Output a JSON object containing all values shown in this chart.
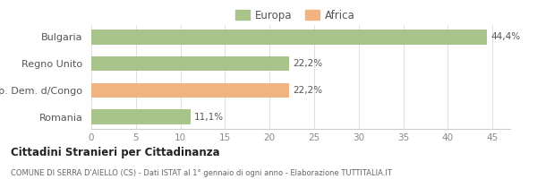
{
  "categories": [
    "Romania",
    "Rep. Dem. d/Congo",
    "Regno Unito",
    "Bulgaria"
  ],
  "values": [
    11.1,
    22.2,
    22.2,
    44.4
  ],
  "labels": [
    "11,1%",
    "22,2%",
    "22,2%",
    "44,4%"
  ],
  "bar_colors": [
    "#a8c48a",
    "#f0b482",
    "#a8c48a",
    "#a8c48a"
  ],
  "europa_color": "#a8c48a",
  "africa_color": "#f0b482",
  "xlim": [
    0,
    47
  ],
  "xticks": [
    0,
    5,
    10,
    15,
    20,
    25,
    30,
    35,
    40,
    45
  ],
  "title_bold": "Cittadini Stranieri per Cittadinanza",
  "title_sub": "COMUNE DI SERRA D'AIELLO (CS) - Dati ISTAT al 1° gennaio di ogni anno - Elaborazione TUTTITALIA.IT",
  "legend_labels": [
    "Europa",
    "Africa"
  ],
  "background_color": "#ffffff"
}
